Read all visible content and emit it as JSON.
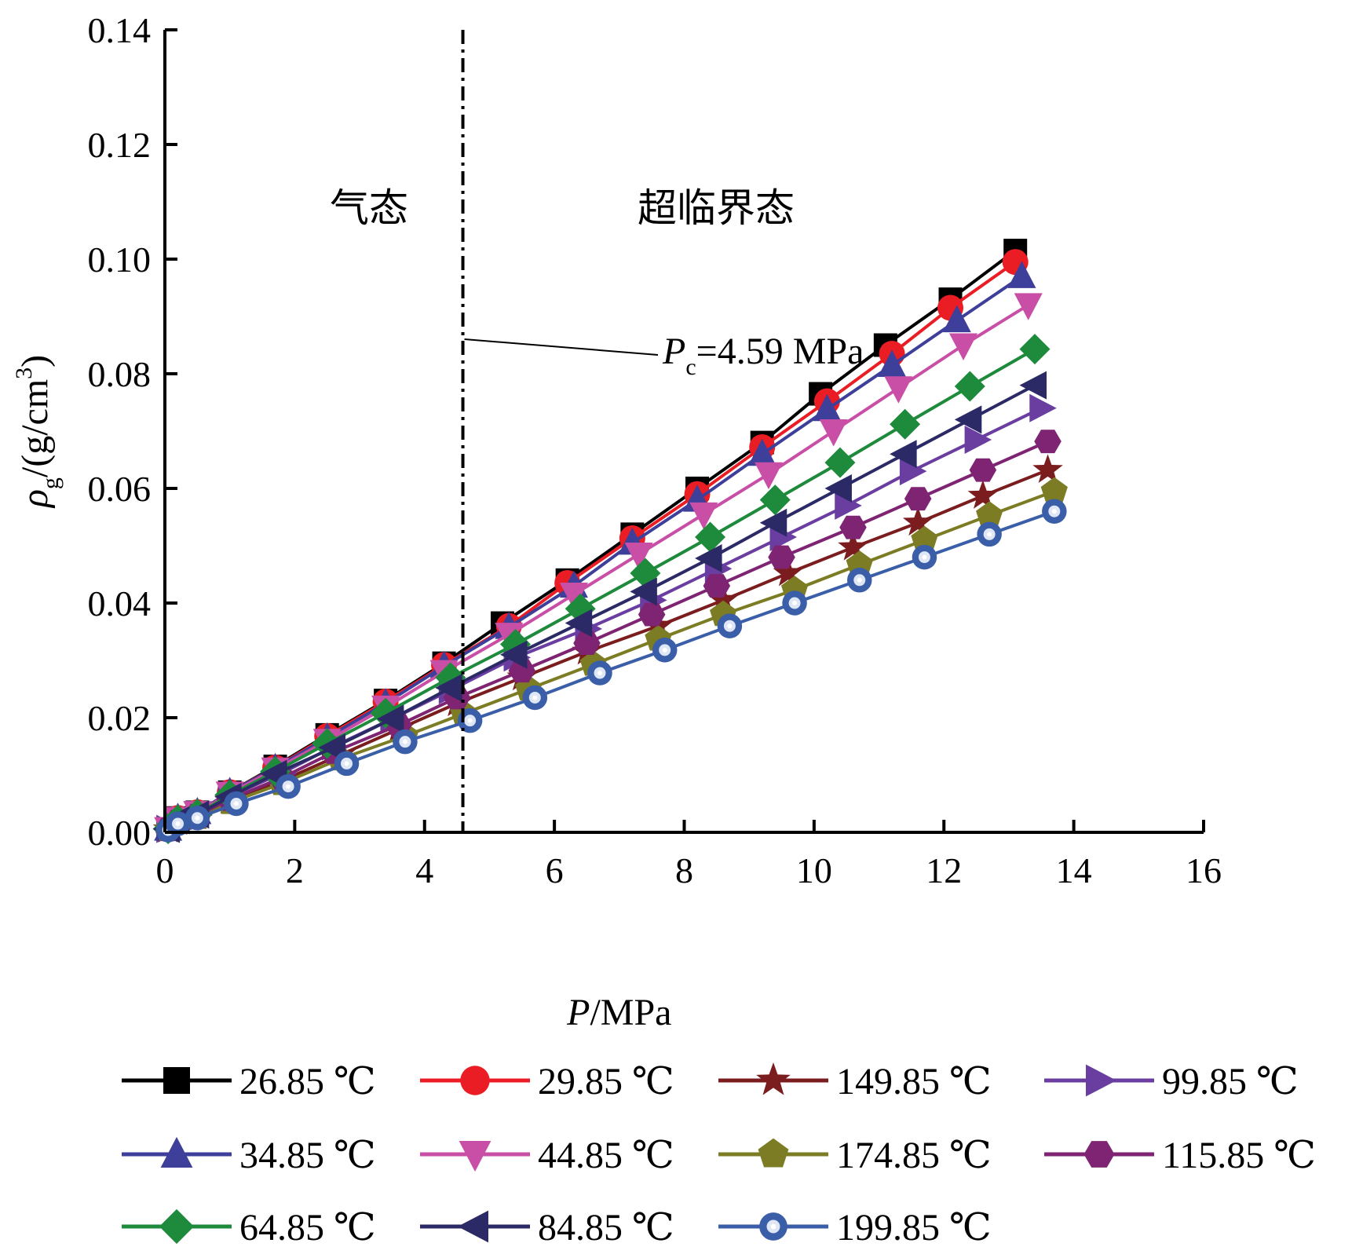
{
  "chart_data": {
    "type": "line",
    "xlabel_italic": "P",
    "xlabel_rest": "/MPa",
    "ylabel_symbol": "ρ",
    "ylabel_sub": "g",
    "ylabel_unit": "/(g/cm",
    "ylabel_sup": "3",
    "ylabel_close": ")",
    "xlim": [
      0,
      16
    ],
    "ylim": [
      0,
      0.14
    ],
    "x_ticks": [
      0,
      2,
      4,
      6,
      8,
      10,
      12,
      14,
      16
    ],
    "x_tick_labels": [
      "0",
      "2",
      "4",
      "6",
      "8",
      "10",
      "12",
      "14",
      "16"
    ],
    "y_ticks": [
      0,
      0.02,
      0.04,
      0.06,
      0.08,
      0.1,
      0.12,
      0.14
    ],
    "y_tick_labels": [
      "0.00",
      "0.02",
      "0.04",
      "0.06",
      "0.08",
      "0.10",
      "0.12",
      "0.14"
    ],
    "grid": false,
    "legend_position": "bottom",
    "regions": {
      "gas_label": "气态",
      "supercritical_label": "超临界态"
    },
    "critical_line": {
      "x": 4.59,
      "label_italic": "P",
      "label_sub": "c",
      "label_rest": "=4.59 MPa"
    },
    "series": [
      {
        "name": "26.85 ℃",
        "color": "#000000",
        "marker": "square",
        "x": [
          0.05,
          0.2,
          0.5,
          1.0,
          1.7,
          2.5,
          3.4,
          4.3,
          5.2,
          6.2,
          7.2,
          8.2,
          9.2,
          10.1,
          11.1,
          12.1,
          13.1
        ],
        "y": [
          0.0006,
          0.0025,
          0.0035,
          0.007,
          0.0115,
          0.017,
          0.023,
          0.0295,
          0.0365,
          0.044,
          0.052,
          0.06,
          0.068,
          0.0765,
          0.085,
          0.093,
          0.1015
        ]
      },
      {
        "name": "29.85 ℃",
        "color": "#ea1c24",
        "marker": "circle",
        "x": [
          0.05,
          0.2,
          0.5,
          1.0,
          1.7,
          2.5,
          3.4,
          4.3,
          5.3,
          6.2,
          7.2,
          8.2,
          9.2,
          10.2,
          11.2,
          12.1,
          13.1
        ],
        "y": [
          0.0006,
          0.0025,
          0.0035,
          0.007,
          0.0113,
          0.0168,
          0.0228,
          0.0292,
          0.036,
          0.0435,
          0.0513,
          0.059,
          0.0672,
          0.0752,
          0.0835,
          0.0915,
          0.0995
        ]
      },
      {
        "name": "149.85 ℃",
        "color": "#7b1c1f",
        "marker": "star",
        "x": [
          0.05,
          0.2,
          0.5,
          1.0,
          1.8,
          2.7,
          3.6,
          4.5,
          5.5,
          6.5,
          7.6,
          8.6,
          9.6,
          10.6,
          11.6,
          12.6,
          13.6
        ],
        "y": [
          0.0005,
          0.0018,
          0.0028,
          0.0055,
          0.009,
          0.0135,
          0.018,
          0.0225,
          0.027,
          0.0315,
          0.036,
          0.0405,
          0.0452,
          0.0497,
          0.054,
          0.0587,
          0.0632
        ]
      },
      {
        "name": "99.85 ℃",
        "color": "#6a3ea1",
        "marker": "triangle-right",
        "x": [
          0.05,
          0.2,
          0.5,
          1.0,
          1.8,
          2.6,
          3.5,
          4.4,
          5.4,
          6.5,
          7.5,
          8.5,
          9.5,
          10.5,
          11.5,
          12.5,
          13.5
        ],
        "y": [
          0.0006,
          0.002,
          0.003,
          0.0063,
          0.0103,
          0.015,
          0.0198,
          0.0248,
          0.0305,
          0.0355,
          0.0405,
          0.046,
          0.0515,
          0.057,
          0.063,
          0.0685,
          0.074
        ]
      },
      {
        "name": "34.85 ℃",
        "color": "#3d3f9a",
        "marker": "triangle-up",
        "x": [
          0.05,
          0.2,
          0.5,
          1.0,
          1.7,
          2.5,
          3.4,
          4.3,
          5.3,
          6.3,
          7.2,
          8.2,
          9.2,
          10.2,
          11.2,
          12.2,
          13.2
        ],
        "y": [
          0.0006,
          0.0025,
          0.0035,
          0.007,
          0.0112,
          0.0165,
          0.0225,
          0.029,
          0.0358,
          0.043,
          0.0505,
          0.058,
          0.066,
          0.0738,
          0.0815,
          0.0893,
          0.097
        ]
      },
      {
        "name": "44.85 ℃",
        "color": "#c94ea5",
        "marker": "triangle-down",
        "x": [
          0.05,
          0.2,
          0.5,
          1.0,
          1.7,
          2.5,
          3.4,
          4.3,
          5.3,
          6.3,
          7.3,
          8.3,
          9.3,
          10.3,
          11.3,
          12.3,
          13.3
        ],
        "y": [
          0.0006,
          0.0024,
          0.0034,
          0.0068,
          0.011,
          0.016,
          0.0218,
          0.028,
          0.0345,
          0.0415,
          0.0485,
          0.0555,
          0.0625,
          0.07,
          0.0775,
          0.085,
          0.092
        ]
      },
      {
        "name": "174.85 ℃",
        "color": "#7c7c24",
        "marker": "pentagon",
        "x": [
          0.05,
          0.2,
          0.5,
          1.0,
          1.8,
          2.7,
          3.7,
          4.6,
          5.6,
          6.6,
          7.6,
          8.6,
          9.7,
          10.7,
          11.7,
          12.7,
          13.7
        ],
        "y": [
          0.0005,
          0.0017,
          0.0026,
          0.0052,
          0.0085,
          0.0128,
          0.0168,
          0.0207,
          0.025,
          0.0293,
          0.0337,
          0.038,
          0.0423,
          0.0467,
          0.051,
          0.0553,
          0.0595
        ]
      },
      {
        "name": "115.85 ℃",
        "color": "#7e2472",
        "marker": "hexagon",
        "x": [
          0.05,
          0.2,
          0.5,
          1.0,
          1.8,
          2.6,
          3.6,
          4.5,
          5.5,
          6.5,
          7.5,
          8.5,
          9.5,
          10.6,
          11.6,
          12.6,
          13.6
        ],
        "y": [
          0.0005,
          0.0019,
          0.0029,
          0.0058,
          0.0095,
          0.014,
          0.0187,
          0.0235,
          0.0282,
          0.033,
          0.038,
          0.043,
          0.048,
          0.0532,
          0.0582,
          0.0632,
          0.0682
        ]
      },
      {
        "name": "64.85 ℃",
        "color": "#1e8a3c",
        "marker": "diamond",
        "x": [
          0.05,
          0.2,
          0.5,
          1.0,
          1.7,
          2.5,
          3.4,
          4.4,
          5.4,
          6.4,
          7.4,
          8.4,
          9.4,
          10.4,
          11.4,
          12.4,
          13.4
        ],
        "y": [
          0.0006,
          0.0022,
          0.0032,
          0.0065,
          0.0106,
          0.0155,
          0.0208,
          0.027,
          0.0328,
          0.039,
          0.0452,
          0.0515,
          0.058,
          0.0645,
          0.0712,
          0.0778,
          0.0843
        ]
      },
      {
        "name": "84.85 ℃",
        "color": "#2b2a66",
        "marker": "triangle-left",
        "x": [
          0.05,
          0.2,
          0.5,
          1.0,
          1.7,
          2.6,
          3.5,
          4.4,
          5.4,
          6.4,
          7.4,
          8.4,
          9.4,
          10.4,
          11.4,
          12.4,
          13.4
        ],
        "y": [
          0.0006,
          0.0021,
          0.0031,
          0.0062,
          0.0102,
          0.0148,
          0.0198,
          0.0252,
          0.031,
          0.0365,
          0.042,
          0.0478,
          0.054,
          0.06,
          0.066,
          0.072,
          0.078
        ]
      },
      {
        "name": "199.85 ℃",
        "color": "#3a5ea8",
        "marker": "ring",
        "x": [
          0.05,
          0.2,
          0.5,
          1.1,
          1.9,
          2.8,
          3.7,
          4.7,
          5.7,
          6.7,
          7.7,
          8.7,
          9.7,
          10.7,
          11.7,
          12.7,
          13.7
        ],
        "y": [
          0.0004,
          0.0015,
          0.0025,
          0.005,
          0.008,
          0.012,
          0.0158,
          0.0195,
          0.0235,
          0.0278,
          0.0318,
          0.036,
          0.04,
          0.044,
          0.048,
          0.052,
          0.056
        ]
      }
    ]
  }
}
